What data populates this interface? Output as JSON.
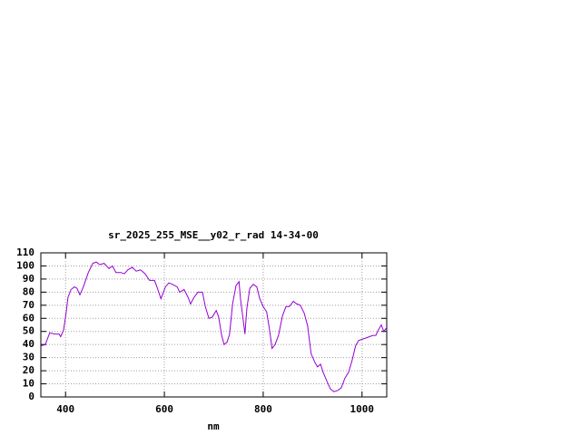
{
  "chart_data": {
    "type": "line",
    "title": "sr_2025_255_MSE__y02_r_rad 14-34-00",
    "x_label": "nm",
    "x": [
      350,
      359,
      368,
      378,
      387,
      390,
      396,
      401,
      405,
      411,
      418,
      423,
      429,
      436,
      446,
      455,
      462,
      469,
      478,
      488,
      495,
      502,
      512,
      519,
      526,
      535,
      543,
      552,
      561,
      570,
      580,
      585,
      593,
      602,
      609,
      616,
      626,
      631,
      640,
      648,
      653,
      660,
      668,
      677,
      683,
      690,
      697,
      705,
      710,
      716,
      721,
      727,
      732,
      738,
      745,
      751,
      754,
      760,
      763,
      767,
      773,
      780,
      787,
      793,
      800,
      807,
      813,
      818,
      824,
      831,
      839,
      846,
      853,
      861,
      868,
      875,
      883,
      890,
      897,
      905,
      910,
      916,
      921,
      929,
      936,
      943,
      951,
      958,
      965,
      973,
      980,
      987,
      993,
      1000,
      1008,
      1015,
      1022,
      1028,
      1033,
      1039,
      1044,
      1050
    ],
    "values": [
      39,
      40,
      49,
      48,
      48,
      46,
      51,
      64,
      76,
      82,
      84,
      83,
      78,
      84,
      95,
      102,
      103,
      101,
      102,
      98,
      100,
      95,
      95,
      94,
      97,
      99,
      96,
      97,
      94,
      89,
      89,
      84,
      75,
      84,
      87,
      86,
      84,
      80,
      82,
      76,
      71,
      76,
      80,
      80,
      69,
      60,
      61,
      66,
      61,
      47,
      40,
      42,
      48,
      71,
      85,
      88,
      75,
      57,
      48,
      68,
      83,
      86,
      84,
      75,
      69,
      65,
      51,
      37,
      40,
      47,
      62,
      69,
      69,
      73,
      71,
      70,
      64,
      54,
      33,
      26,
      23,
      25,
      19,
      12,
      6,
      4,
      5,
      7,
      14,
      19,
      28,
      39,
      43,
      44,
      45,
      46,
      47,
      47,
      51,
      55,
      50,
      53
    ],
    "color": "#9400d3",
    "xlim": [
      350,
      1050
    ],
    "xticks": [
      400,
      600,
      800,
      1000
    ],
    "ylim": [
      0,
      110
    ],
    "yticks": [
      0,
      10,
      20,
      30,
      40,
      50,
      60,
      70,
      80,
      90,
      100,
      110
    ],
    "grid": true
  }
}
